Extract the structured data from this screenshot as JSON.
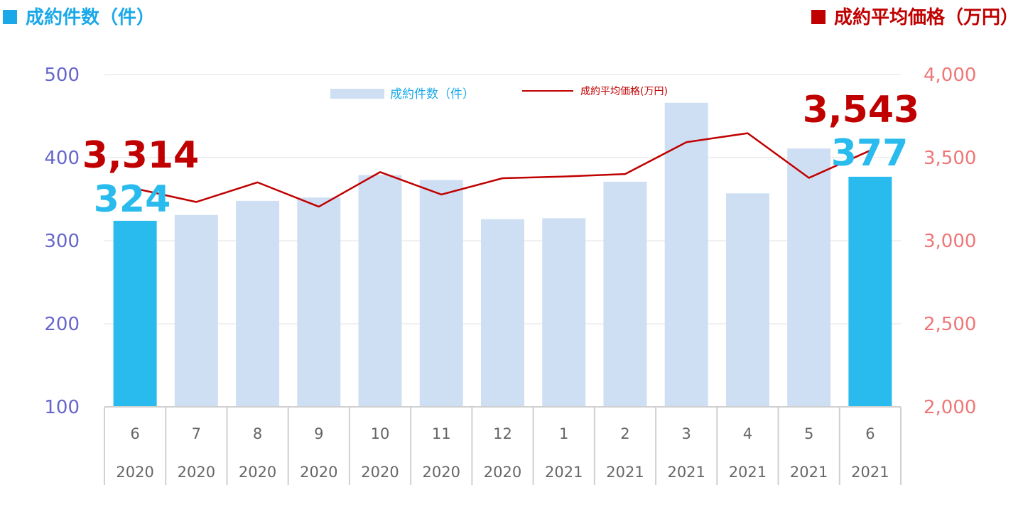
{
  "header": {
    "left_label": "成約件数（件）",
    "right_label": "成約平均価格（万円）"
  },
  "legend": {
    "bar_label": "成約件数（件）",
    "line_label": "成約平均価格(万円)"
  },
  "colors": {
    "bar_light": "#cfdff3",
    "bar_highlight": "#29bbee",
    "line": "#c00000",
    "left_axis": "#6666cc",
    "right_axis": "#ee7777",
    "header_left": "#1aa8e8",
    "header_right": "#c00000",
    "grid": "#e0e0e0",
    "tick_text": "#666666"
  },
  "chart_data": {
    "type": "bar",
    "categories": [
      {
        "month": "6",
        "year": "2020"
      },
      {
        "month": "7",
        "year": "2020"
      },
      {
        "month": "8",
        "year": "2020"
      },
      {
        "month": "9",
        "year": "2020"
      },
      {
        "month": "10",
        "year": "2020"
      },
      {
        "month": "11",
        "year": "2020"
      },
      {
        "month": "12",
        "year": "2020"
      },
      {
        "month": "1",
        "year": "2021"
      },
      {
        "month": "2",
        "year": "2021"
      },
      {
        "month": "3",
        "year": "2021"
      },
      {
        "month": "4",
        "year": "2021"
      },
      {
        "month": "5",
        "year": "2021"
      },
      {
        "month": "6",
        "year": "2021"
      }
    ],
    "series": [
      {
        "name": "成約件数（件）",
        "type": "bar",
        "axis": "left",
        "values": [
          324,
          331,
          348,
          352,
          379,
          373,
          326,
          327,
          371,
          466,
          357,
          411,
          377
        ],
        "highlight": [
          true,
          false,
          false,
          false,
          false,
          false,
          false,
          false,
          false,
          false,
          false,
          false,
          true
        ]
      },
      {
        "name": "成約平均価格(万円)",
        "type": "line",
        "axis": "right",
        "values": [
          3314,
          3233,
          3351,
          3205,
          3413,
          3278,
          3376,
          3386,
          3401,
          3593,
          3647,
          3378,
          3543
        ]
      }
    ],
    "left_axis": {
      "ylim": [
        100,
        500
      ],
      "ticks": [
        "100",
        "200",
        "300",
        "400",
        "500"
      ]
    },
    "right_axis": {
      "ylim": [
        2000,
        4000
      ],
      "ticks": [
        "2,000",
        "2,500",
        "3,000",
        "3,500",
        "4,000"
      ]
    },
    "annotations": [
      {
        "label": "3,314",
        "category_index": 0,
        "series": "line"
      },
      {
        "label": "324",
        "category_index": 0,
        "series": "bar"
      },
      {
        "label": "3,543",
        "category_index": 12,
        "series": "line"
      },
      {
        "label": "377",
        "category_index": 12,
        "series": "bar"
      }
    ],
    "grid": true,
    "legend_position": "top-center"
  }
}
